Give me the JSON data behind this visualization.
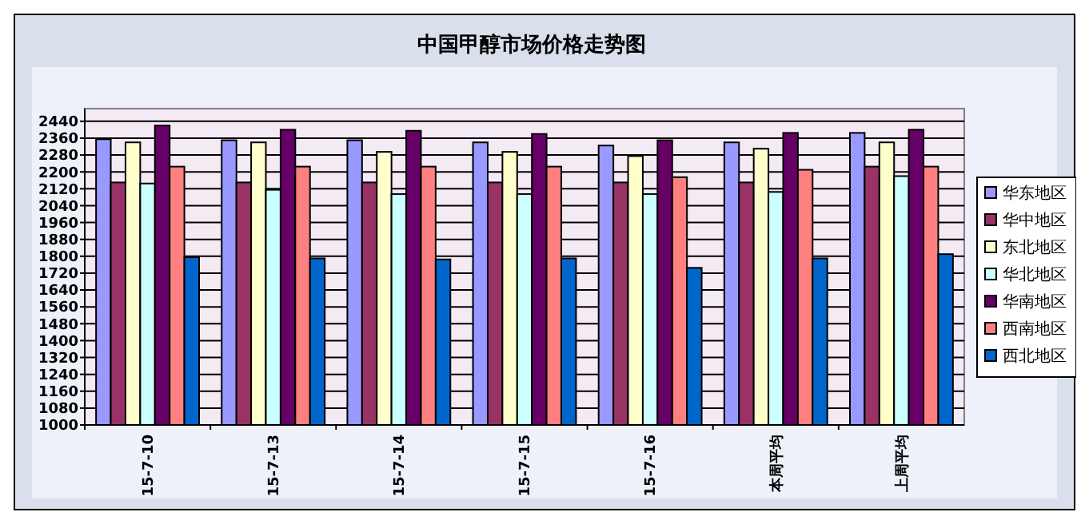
{
  "chart_data": {
    "type": "bar",
    "title": "中国甲醇市场价格走势图",
    "categories": [
      "15-7-10",
      "15-7-13",
      "15-7-14",
      "15-7-15",
      "15-7-16",
      "本周平均",
      "上周平均"
    ],
    "series": [
      {
        "name": "华东地区",
        "color": "#9999ff",
        "values": [
          2355,
          2350,
          2350,
          2340,
          2325,
          2340,
          2385
        ]
      },
      {
        "name": "华中地区",
        "color": "#993366",
        "values": [
          2150,
          2150,
          2150,
          2150,
          2150,
          2150,
          2225
        ]
      },
      {
        "name": "东北地区",
        "color": "#ffffcc",
        "values": [
          2340,
          2340,
          2295,
          2295,
          2275,
          2310,
          2340
        ]
      },
      {
        "name": "华北地区",
        "color": "#ccffff",
        "values": [
          2145,
          2115,
          2095,
          2095,
          2095,
          2105,
          2180
        ]
      },
      {
        "name": "华南地区",
        "color": "#660066",
        "values": [
          2420,
          2400,
          2395,
          2380,
          2350,
          2385,
          2400
        ]
      },
      {
        "name": "西南地区",
        "color": "#ff8080",
        "values": [
          2225,
          2225,
          2225,
          2225,
          2175,
          2210,
          2225
        ]
      },
      {
        "name": "西北地区",
        "color": "#0066cc",
        "values": [
          1795,
          1790,
          1785,
          1790,
          1745,
          1790,
          1810
        ]
      }
    ],
    "ylim": [
      1000,
      2500
    ],
    "yticks": [
      1000,
      1080,
      1160,
      1240,
      1320,
      1400,
      1480,
      1560,
      1640,
      1720,
      1800,
      1880,
      1960,
      2040,
      2120,
      2200,
      2280,
      2360,
      2440
    ],
    "grid": "y",
    "legend": "right"
  }
}
